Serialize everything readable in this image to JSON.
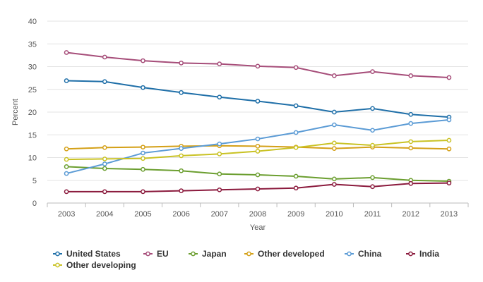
{
  "chart_data": {
    "type": "line",
    "xlabel": "Year",
    "ylabel": "Percent",
    "ylim": [
      0,
      40
    ],
    "y_ticks": [
      0,
      5,
      10,
      15,
      20,
      25,
      30,
      35,
      40
    ],
    "grid": "horizontal",
    "legend_position": "bottom",
    "categories": [
      "2003",
      "2004",
      "2005",
      "2006",
      "2007",
      "2008",
      "2009",
      "2010",
      "2011",
      "2012",
      "2013"
    ],
    "series": [
      {
        "name": "United States",
        "color": "#1f6fa8",
        "values": [
          26.9,
          26.7,
          25.4,
          24.3,
          23.3,
          22.4,
          21.4,
          20.0,
          20.8,
          19.5,
          18.9
        ]
      },
      {
        "name": "EU",
        "color": "#a64d79",
        "values": [
          33.1,
          32.1,
          31.3,
          30.8,
          30.6,
          30.1,
          29.8,
          28.0,
          28.9,
          28.0,
          27.6
        ]
      },
      {
        "name": "Japan",
        "color": "#6b9e2f",
        "values": [
          8.0,
          7.6,
          7.4,
          7.1,
          6.4,
          6.2,
          5.9,
          5.3,
          5.6,
          5.0,
          4.8
        ]
      },
      {
        "name": "Other developed",
        "color": "#d4a017",
        "values": [
          11.9,
          12.2,
          12.3,
          12.5,
          12.6,
          12.5,
          12.3,
          12.0,
          12.3,
          12.1,
          11.9
        ]
      },
      {
        "name": "China",
        "color": "#5b9bd5",
        "values": [
          6.5,
          8.6,
          11.0,
          12.0,
          13.0,
          14.1,
          15.5,
          17.2,
          16.0,
          17.5,
          18.3
        ]
      },
      {
        "name": "India",
        "color": "#8b1a3d",
        "values": [
          2.5,
          2.5,
          2.5,
          2.7,
          2.9,
          3.1,
          3.3,
          4.1,
          3.6,
          4.3,
          4.4
        ]
      },
      {
        "name": "Other developing",
        "color": "#c9c224",
        "values": [
          9.6,
          9.7,
          9.8,
          10.4,
          10.8,
          11.4,
          12.2,
          13.2,
          12.7,
          13.5,
          13.8
        ]
      }
    ]
  }
}
